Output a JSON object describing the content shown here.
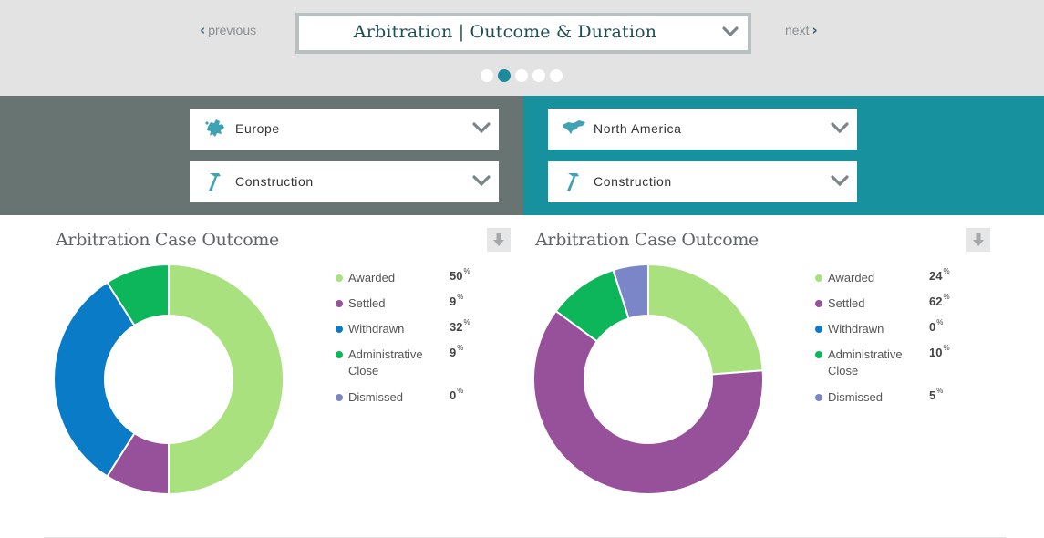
{
  "nav": {
    "previous_label": "previous",
    "next_label": "next",
    "title": "Arbitration | Outcome & Duration",
    "dots": 5,
    "active_dot": 1
  },
  "filters": {
    "left": {
      "region": "Europe",
      "sector": "Construction",
      "region_icon": "europe-map-icon",
      "sector_icon": "hammer-icon",
      "bg_color": "#687472"
    },
    "right": {
      "region": "North America",
      "sector": "Construction",
      "region_icon": "north-america-map-icon",
      "sector_icon": "hammer-icon",
      "bg_color": "#17919e"
    }
  },
  "charts": {
    "left": {
      "title": "Arbitration Case Outcome"
    },
    "right": {
      "title": "Arbitration Case Outcome"
    }
  },
  "colors": {
    "Awarded": "#a8e17e",
    "Settled": "#96519a",
    "Withdrawn": "#0a7bc6",
    "Administrative Close": "#0db55b",
    "Dismissed": "#7b86c8"
  },
  "percent_sign": "%",
  "chart_data": [
    {
      "type": "pie",
      "title": "Arbitration Case Outcome",
      "categories": [
        "Awarded",
        "Settled",
        "Withdrawn",
        "Administrative Close",
        "Dismissed"
      ],
      "values": [
        50,
        9,
        32,
        9,
        0
      ],
      "legend": "right"
    },
    {
      "type": "pie",
      "title": "Arbitration Case Outcome",
      "categories": [
        "Awarded",
        "Settled",
        "Withdrawn",
        "Administrative Close",
        "Dismissed"
      ],
      "values": [
        24,
        62,
        0,
        10,
        5
      ],
      "legend": "right"
    }
  ]
}
